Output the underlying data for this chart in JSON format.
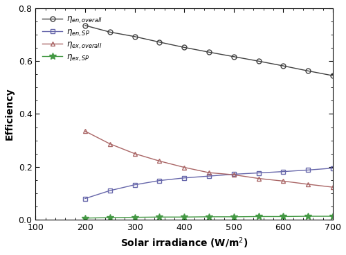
{
  "x": [
    200,
    250,
    300,
    350,
    400,
    450,
    500,
    550,
    600,
    650,
    700
  ],
  "eta_en_overall": [
    0.735,
    0.71,
    0.693,
    0.672,
    0.652,
    0.634,
    0.617,
    0.6,
    0.582,
    0.563,
    0.545
  ],
  "eta_en_SP": [
    0.08,
    0.11,
    0.132,
    0.148,
    0.158,
    0.165,
    0.172,
    0.177,
    0.182,
    0.188,
    0.195
  ],
  "eta_ex_overall": [
    0.335,
    0.287,
    0.25,
    0.222,
    0.198,
    0.178,
    0.17,
    0.156,
    0.146,
    0.134,
    0.123
  ],
  "eta_ex_SP": [
    0.006,
    0.008,
    0.009,
    0.01,
    0.01,
    0.011,
    0.011,
    0.012,
    0.012,
    0.013,
    0.013
  ],
  "colors": {
    "eta_en_overall": "#404040",
    "eta_en_SP": "#6666aa",
    "eta_ex_overall": "#aa6666",
    "eta_ex_SP": "#449944"
  },
  "markers": {
    "eta_en_overall": "o",
    "eta_en_SP": "s",
    "eta_ex_overall": "^",
    "eta_ex_SP": "*"
  },
  "labels": {
    "eta_en_overall": "$\\eta_{en,overall}$",
    "eta_en_SP": "$\\eta_{en,SP}$",
    "eta_ex_overall": "$\\eta_{ex,overall}$",
    "eta_ex_SP": "$\\eta_{ex,SP}$"
  },
  "xlabel": "Solar irradiance (W/m$^2$)",
  "ylabel": "Efficiency",
  "xlim": [
    100,
    700
  ],
  "ylim": [
    0,
    0.8
  ],
  "yticks": [
    0,
    0.2,
    0.4,
    0.6,
    0.8
  ],
  "xticks": [
    100,
    200,
    300,
    400,
    500,
    600,
    700
  ]
}
